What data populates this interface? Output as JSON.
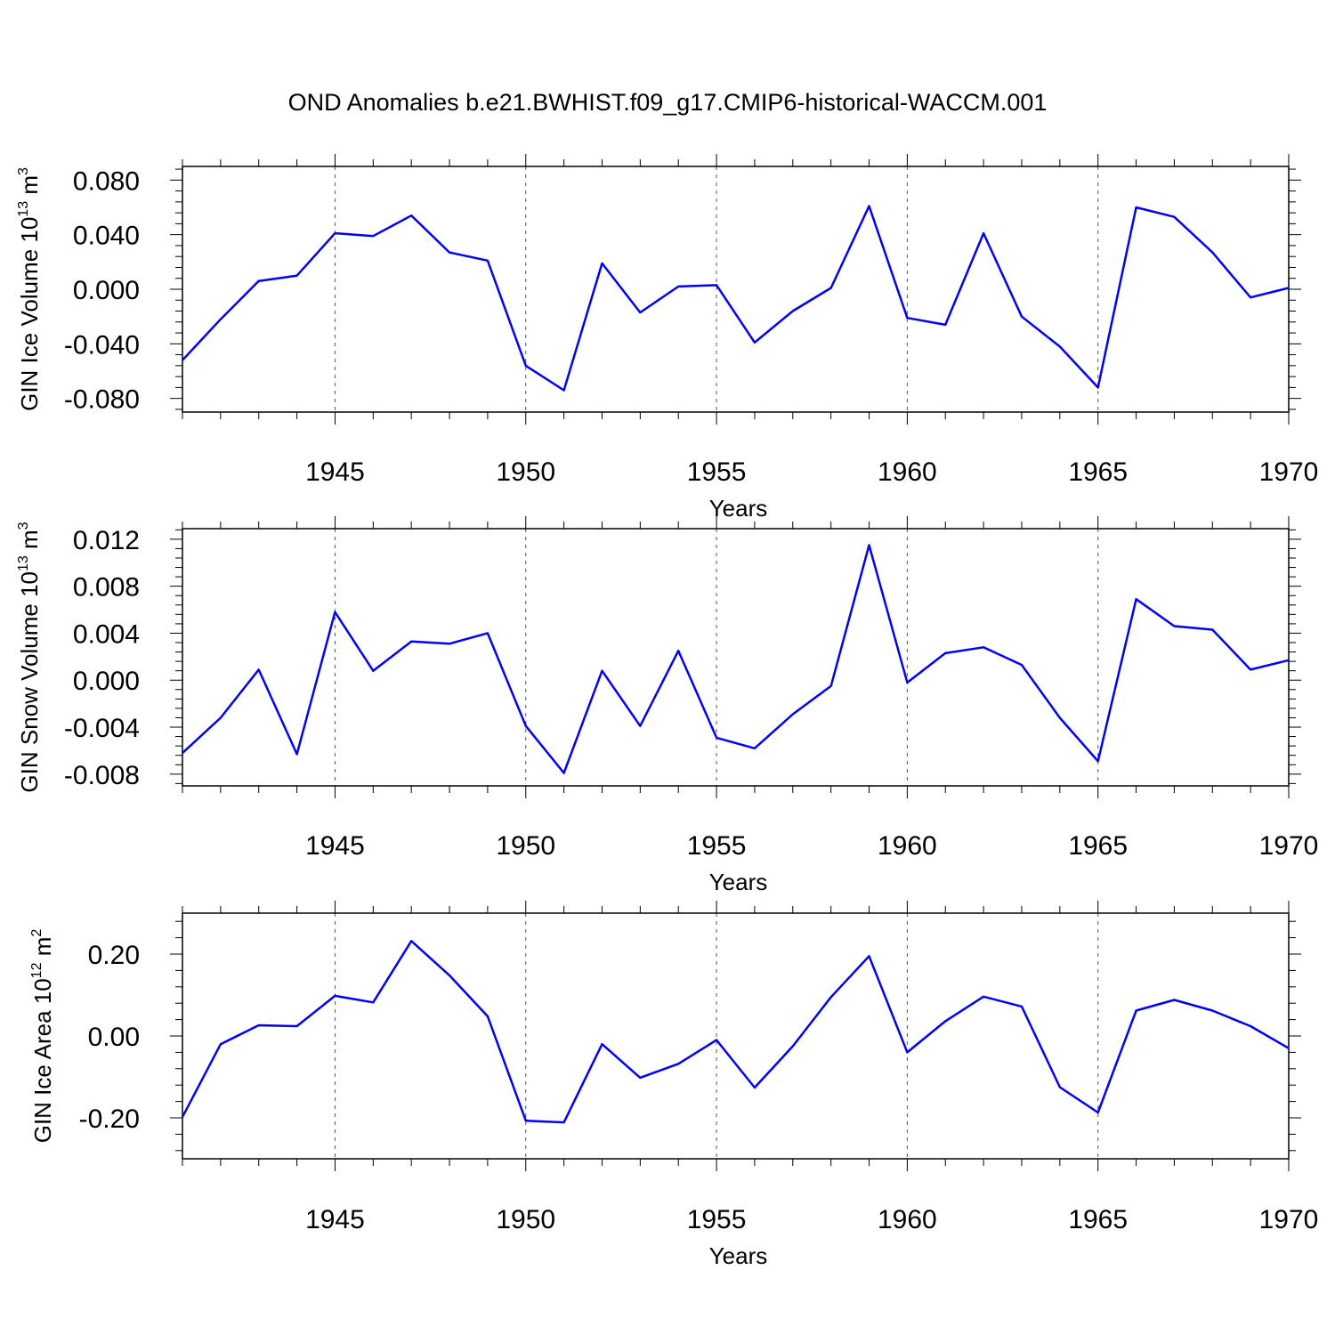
{
  "title": "OND Anomalies b.e21.BWHIST.f09_g17.CMIP6-historical-WACCM.001",
  "line_color": "#0000ff",
  "chart_data": [
    {
      "type": "line",
      "ylabel": "GIN Ice Volume 10",
      "ylabel_exp": "13",
      "ylabel_unit": " m",
      "ylabel_unit_exp": "3",
      "xlabel": "Years",
      "xlim": [
        1941,
        1970
      ],
      "ylim": [
        -0.09,
        0.09
      ],
      "xticks": [
        "1945",
        "1950",
        "1955",
        "1960",
        "1965",
        "1970"
      ],
      "yticks": [
        -0.08,
        -0.04,
        0.0,
        0.04,
        0.08
      ],
      "ytick_labels": [
        "-0.080",
        "-0.040",
        "0.000",
        "0.040",
        "0.080"
      ],
      "x": [
        1941,
        1942,
        1943,
        1944,
        1945,
        1946,
        1947,
        1948,
        1949,
        1950,
        1951,
        1952,
        1953,
        1954,
        1955,
        1956,
        1957,
        1958,
        1959,
        1960,
        1961,
        1962,
        1963,
        1964,
        1965,
        1966,
        1967,
        1968,
        1969,
        1970
      ],
      "values": [
        -0.052,
        -0.022,
        0.006,
        0.01,
        0.041,
        0.039,
        0.054,
        0.027,
        0.021,
        -0.056,
        -0.074,
        0.019,
        -0.017,
        0.002,
        0.003,
        -0.039,
        -0.016,
        0.001,
        0.061,
        -0.021,
        -0.026,
        0.041,
        -0.02,
        -0.042,
        -0.072,
        0.06,
        0.053,
        0.027,
        -0.006,
        0.001
      ]
    },
    {
      "type": "line",
      "ylabel": "GIN Snow Volume 10",
      "ylabel_exp": "13",
      "ylabel_unit": " m",
      "ylabel_unit_exp": "3",
      "xlabel": "Years",
      "xlim": [
        1941,
        1970
      ],
      "ylim": [
        -0.009,
        0.0129
      ],
      "xticks": [
        "1945",
        "1950",
        "1955",
        "1960",
        "1965",
        "1970"
      ],
      "yticks": [
        -0.008,
        -0.004,
        0.0,
        0.004,
        0.008,
        0.012
      ],
      "ytick_labels": [
        "-0.008",
        "-0.004",
        "0.000",
        "0.004",
        "0.008",
        "0.012"
      ],
      "x": [
        1941,
        1942,
        1943,
        1944,
        1945,
        1946,
        1947,
        1948,
        1949,
        1950,
        1951,
        1952,
        1953,
        1954,
        1955,
        1956,
        1957,
        1958,
        1959,
        1960,
        1961,
        1962,
        1963,
        1964,
        1965,
        1966,
        1967,
        1968,
        1969,
        1970
      ],
      "values": [
        -0.0062,
        -0.0032,
        0.0009,
        -0.0063,
        0.0058,
        0.0008,
        0.0033,
        0.0031,
        0.004,
        -0.0039,
        -0.0079,
        0.0008,
        -0.0039,
        0.0025,
        -0.0049,
        -0.0058,
        -0.0029,
        -0.0005,
        0.0115,
        -0.0002,
        0.0023,
        0.0028,
        0.0013,
        -0.0032,
        -0.0069,
        0.0069,
        0.0046,
        0.0043,
        0.0009,
        0.0017
      ]
    },
    {
      "type": "line",
      "ylabel": "GIN Ice Area 10",
      "ylabel_exp": "12",
      "ylabel_unit": " m",
      "ylabel_unit_exp": "2",
      "xlabel": "Years",
      "xlim": [
        1941,
        1970
      ],
      "ylim": [
        -0.3,
        0.3
      ],
      "xticks": [
        "1945",
        "1950",
        "1955",
        "1960",
        "1965",
        "1970"
      ],
      "yticks": [
        -0.2,
        0.0,
        0.2
      ],
      "ytick_labels": [
        "-0.20",
        "0.00",
        "0.20"
      ],
      "x": [
        1941,
        1942,
        1943,
        1944,
        1945,
        1946,
        1947,
        1948,
        1949,
        1950,
        1951,
        1952,
        1953,
        1954,
        1955,
        1956,
        1957,
        1958,
        1959,
        1960,
        1961,
        1962,
        1963,
        1964,
        1965,
        1966,
        1967,
        1968,
        1969,
        1970
      ],
      "values": [
        -0.198,
        -0.02,
        0.026,
        0.024,
        0.098,
        0.082,
        0.232,
        0.148,
        0.048,
        -0.207,
        -0.211,
        -0.02,
        -0.102,
        -0.068,
        -0.01,
        -0.126,
        -0.025,
        0.095,
        0.195,
        -0.04,
        0.036,
        0.096,
        0.072,
        -0.125,
        -0.187,
        0.062,
        0.088,
        0.062,
        0.024,
        -0.03
      ]
    }
  ]
}
